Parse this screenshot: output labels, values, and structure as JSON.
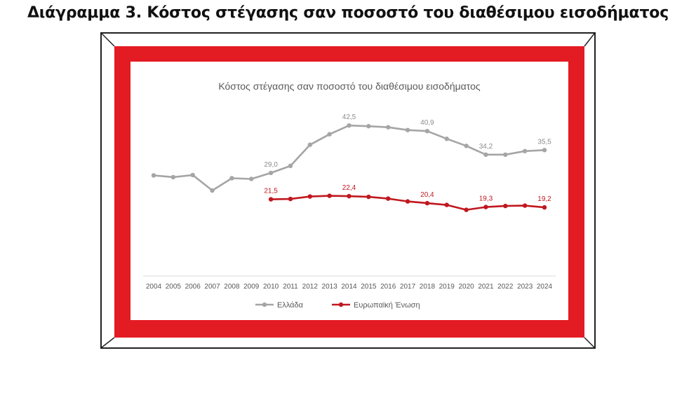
{
  "page": {
    "heading": "Διάγραμμα 3. Κόστος στέγασης σαν ποσοστό του διαθέσιμου εισοδήματος"
  },
  "colors": {
    "frame_red": "#e31b23",
    "greece_line": "#a5a5a5",
    "eu_line": "#c0181f",
    "text": "#595959"
  },
  "chart_data": {
    "type": "line",
    "title": "Κόστος στέγασης σαν ποσοστό του διαθέσιμου εισοδήματος",
    "xlabel": "",
    "ylabel": "",
    "grid": false,
    "legend_position": "bottom",
    "categories": [
      "2004",
      "2005",
      "2006",
      "2007",
      "2008",
      "2009",
      "2010",
      "2011",
      "2012",
      "2013",
      "2014",
      "2015",
      "2016",
      "2017",
      "2018",
      "2019",
      "2020",
      "2021",
      "2022",
      "2023",
      "2024"
    ],
    "ylim": [
      0,
      45
    ],
    "series": [
      {
        "name": "Ελλάδα",
        "color": "#a5a5a5",
        "values": [
          28.3,
          27.8,
          28.4,
          24.0,
          27.5,
          27.3,
          29.0,
          31.0,
          37.0,
          40.0,
          42.5,
          42.3,
          42.0,
          41.2,
          40.9,
          38.7,
          36.7,
          34.2,
          34.2,
          35.2,
          35.5
        ],
        "labels": {
          "2010": "29,0",
          "2014": "42,5",
          "2018": "40,9",
          "2021": "34,2",
          "2024": "35,5"
        }
      },
      {
        "name": "Ευρωπαϊκή Ένωση",
        "color": "#c0181f",
        "values": [
          null,
          null,
          null,
          null,
          null,
          null,
          21.5,
          21.6,
          22.3,
          22.5,
          22.4,
          22.2,
          21.7,
          20.9,
          20.4,
          19.9,
          18.5,
          19.3,
          19.6,
          19.7,
          19.2
        ],
        "labels": {
          "2010": "21,5",
          "2014": "22,4",
          "2018": "20,4",
          "2021": "19,3",
          "2024": "19,2"
        }
      }
    ]
  }
}
